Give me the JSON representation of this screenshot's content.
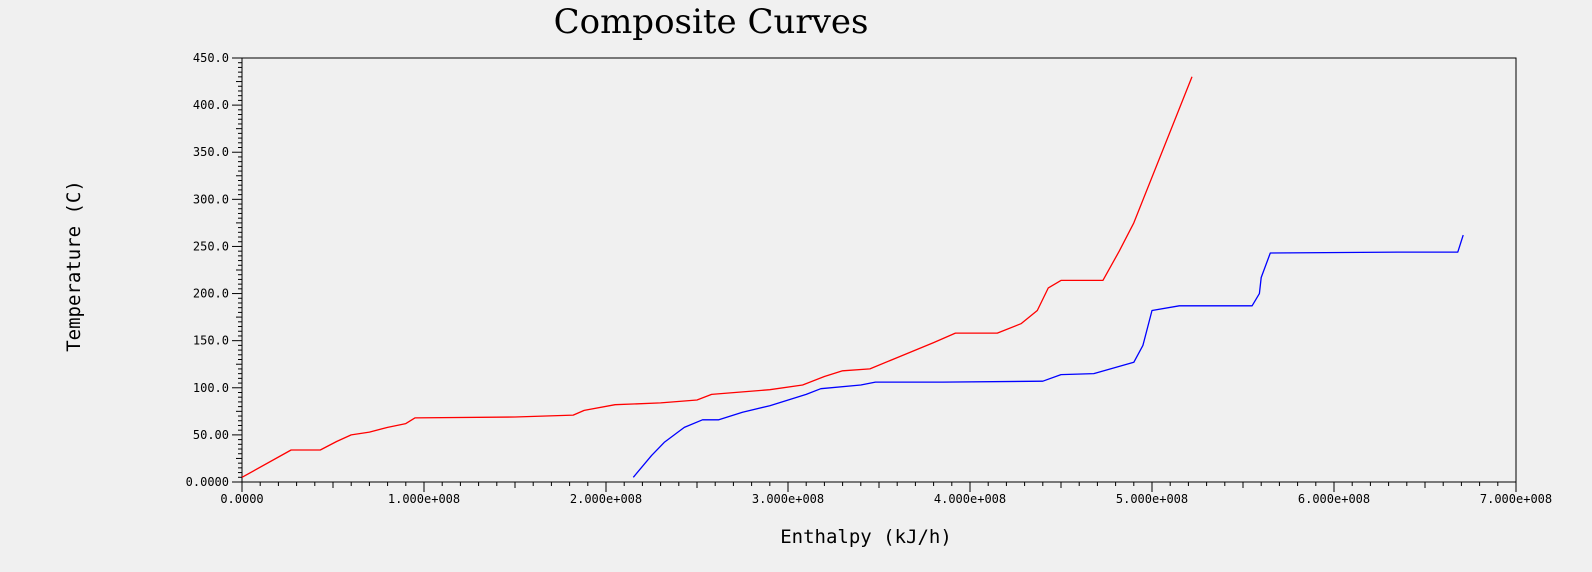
{
  "chart_data": {
    "type": "line",
    "title": "Composite Curves",
    "xlabel": "Enthalpy (kJ/h)",
    "ylabel": "Temperature (C)",
    "xlim": [
      0,
      700000000
    ],
    "ylim": [
      0,
      450
    ],
    "x_ticks": [
      0,
      100000000,
      200000000,
      300000000,
      400000000,
      500000000,
      600000000,
      700000000
    ],
    "x_tick_labels": [
      "0.0000",
      "1.000e+008",
      "2.000e+008",
      "3.000e+008",
      "4.000e+008",
      "5.000e+008",
      "6.000e+008",
      "7.000e+008"
    ],
    "y_ticks": [
      0,
      50,
      100,
      150,
      200,
      250,
      300,
      350,
      400,
      450
    ],
    "y_tick_labels": [
      "0.0000",
      "50.00",
      "100.0",
      "150.0",
      "200.0",
      "250.0",
      "300.0",
      "350.0",
      "400.0",
      "450.0"
    ],
    "grid": false,
    "colors": {
      "hot": "#ff0000",
      "cold": "#0000ff",
      "axis": "#000000",
      "background": "#f0f0f0"
    },
    "series": [
      {
        "color": "#ff0000",
        "points": [
          [
            0,
            5
          ],
          [
            27000000,
            34
          ],
          [
            43000000,
            34
          ],
          [
            52000000,
            43
          ],
          [
            60000000,
            50
          ],
          [
            70000000,
            53
          ],
          [
            80000000,
            58
          ],
          [
            90000000,
            62
          ],
          [
            95000000,
            68
          ],
          [
            150000000,
            69
          ],
          [
            182000000,
            71
          ],
          [
            188000000,
            76
          ],
          [
            205000000,
            82
          ],
          [
            230000000,
            84
          ],
          [
            250000000,
            87
          ],
          [
            258000000,
            93
          ],
          [
            290000000,
            98
          ],
          [
            308000000,
            103
          ],
          [
            320000000,
            112
          ],
          [
            330000000,
            118
          ],
          [
            345000000,
            120
          ],
          [
            360000000,
            132
          ],
          [
            380000000,
            148
          ],
          [
            392000000,
            158
          ],
          [
            415000000,
            158
          ],
          [
            428000000,
            168
          ],
          [
            437000000,
            182
          ],
          [
            443000000,
            206
          ],
          [
            450000000,
            214
          ],
          [
            473000000,
            214
          ],
          [
            482000000,
            245
          ],
          [
            490000000,
            275
          ],
          [
            522000000,
            430
          ]
        ]
      },
      {
        "color": "#0000ff",
        "points": [
          [
            215000000,
            5
          ],
          [
            225000000,
            28
          ],
          [
            232000000,
            42
          ],
          [
            243000000,
            58
          ],
          [
            253000000,
            66
          ],
          [
            262000000,
            66
          ],
          [
            275000000,
            74
          ],
          [
            290000000,
            81
          ],
          [
            310000000,
            93
          ],
          [
            318000000,
            99
          ],
          [
            340000000,
            103
          ],
          [
            348000000,
            106
          ],
          [
            385000000,
            106
          ],
          [
            440000000,
            107
          ],
          [
            450000000,
            114
          ],
          [
            468000000,
            115
          ],
          [
            490000000,
            127
          ],
          [
            495000000,
            145
          ],
          [
            500000000,
            182
          ],
          [
            515000000,
            187
          ],
          [
            555000000,
            187
          ],
          [
            559000000,
            200
          ],
          [
            560000000,
            217
          ],
          [
            565000000,
            243
          ],
          [
            635000000,
            244
          ],
          [
            668000000,
            244
          ],
          [
            671000000,
            262
          ]
        ]
      }
    ]
  }
}
